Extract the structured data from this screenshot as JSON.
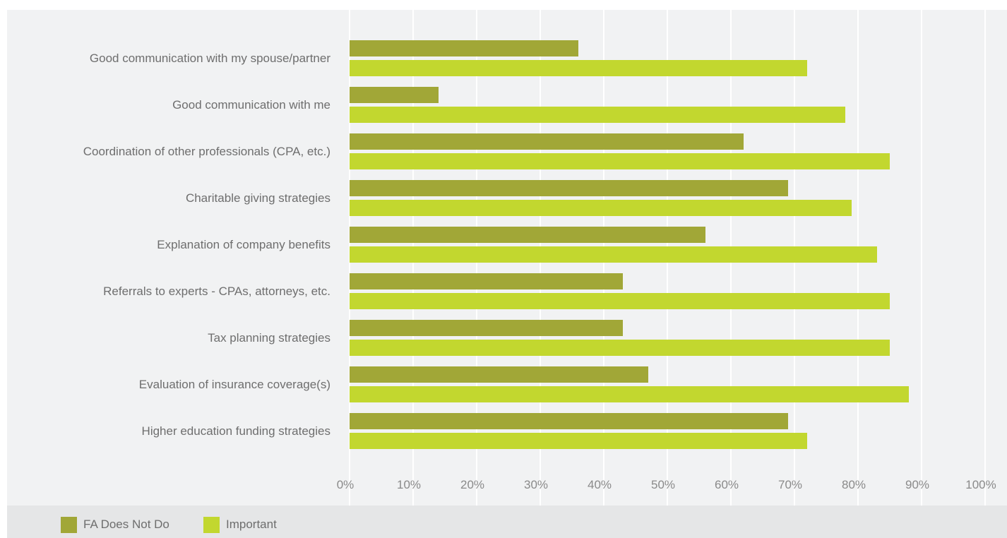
{
  "chart_data": {
    "type": "bar",
    "orientation": "horizontal",
    "categories": [
      "Good communication with my spouse/partner",
      "Good communication with me",
      "Coordination of other professionals (CPA, etc.)",
      "Charitable giving strategies",
      "Explanation of company benefits",
      "Referrals to experts - CPAs, attorneys, etc.",
      "Tax planning strategies",
      "Evaluation of insurance coverage(s)",
      "Higher education funding strategies"
    ],
    "series": [
      {
        "name": "FA Does Not Do",
        "color": "#a1a737",
        "values": [
          36,
          14,
          62,
          69,
          56,
          43,
          43,
          47,
          69
        ]
      },
      {
        "name": "Important",
        "color": "#c2d72f",
        "values": [
          72,
          78,
          85,
          79,
          83,
          85,
          85,
          88,
          72
        ]
      }
    ],
    "xlim": [
      0,
      100
    ],
    "x_ticks": [
      "0%",
      "10%",
      "20%",
      "30%",
      "40%",
      "50%",
      "60%",
      "70%",
      "80%",
      "90%",
      "100%"
    ],
    "grid": true,
    "legend_position": "bottom-left"
  },
  "legend": [
    {
      "label": "FA Does Not Do",
      "color": "#a1a737"
    },
    {
      "label": "Important",
      "color": "#c2d72f"
    }
  ]
}
